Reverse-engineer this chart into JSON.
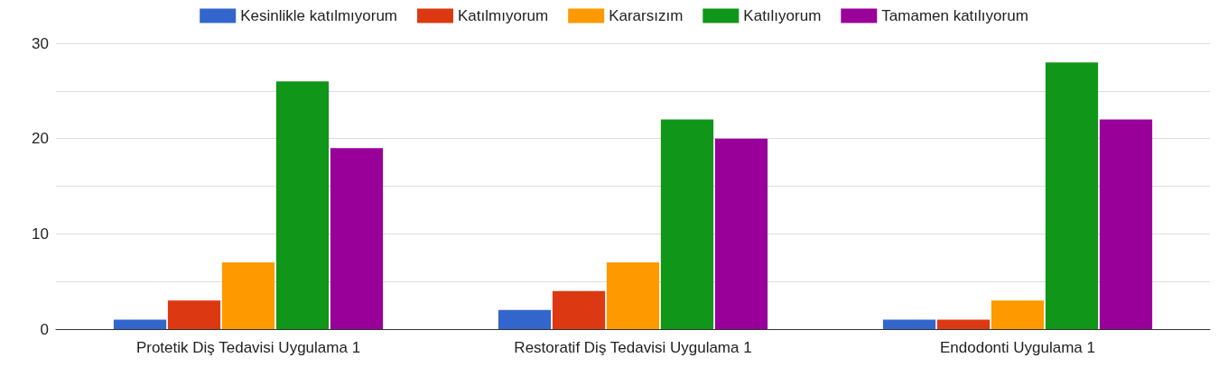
{
  "chart_data": {
    "type": "bar",
    "categories": [
      "Protetik Diş Tedavisi Uygulama 1",
      "Restoratif Diş Tedavisi Uygulama 1",
      "Endodonti Uygulama 1"
    ],
    "series": [
      {
        "name": "Kesinlikle katılmıyorum",
        "color": "#3366cc",
        "values": [
          1,
          2,
          1
        ]
      },
      {
        "name": "Katılmıyorum",
        "color": "#dc3912",
        "values": [
          3,
          4,
          1
        ]
      },
      {
        "name": "Kararsızım",
        "color": "#ff9900",
        "values": [
          7,
          7,
          3
        ]
      },
      {
        "name": "Katılıyorum",
        "color": "#109618",
        "values": [
          26,
          22,
          28
        ]
      },
      {
        "name": "Tamamen katılıyorum",
        "color": "#990099",
        "values": [
          19,
          20,
          22
        ]
      }
    ],
    "ylim": [
      0,
      30
    ],
    "yticks": [
      0,
      {
        "value": 5,
        "label": null
      },
      10,
      {
        "value": 15,
        "label": null
      },
      20,
      {
        "value": 25,
        "label": null
      },
      30
    ],
    "grid": true,
    "legend": "top"
  }
}
